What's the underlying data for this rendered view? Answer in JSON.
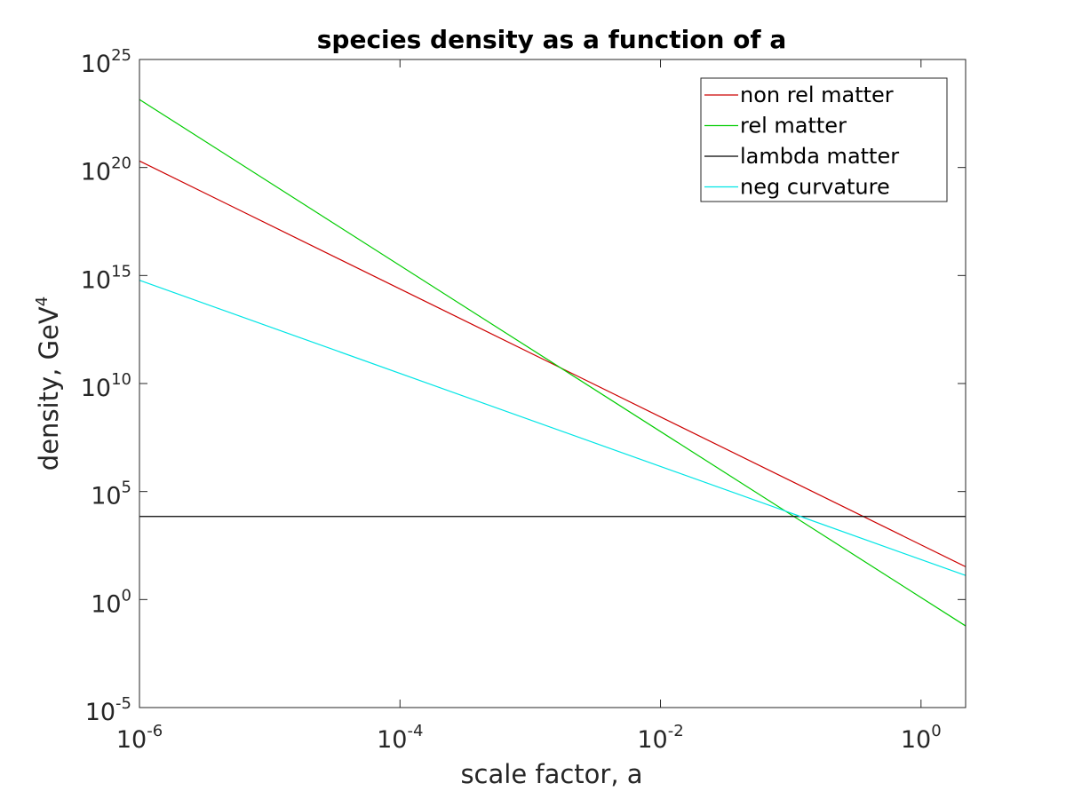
{
  "chart_data": {
    "type": "line",
    "title": "species density as a function of a",
    "xlabel": "scale factor, a",
    "ylabel": {
      "text": "density, GeV",
      "sup": "4"
    },
    "xscale": "log",
    "yscale": "log",
    "xlim": [
      1e-06,
      2.2
    ],
    "ylim": [
      1e-05,
      1e+25
    ],
    "xticks": [
      {
        "value": 1e-06,
        "base": "10",
        "exp": "-6"
      },
      {
        "value": 0.0001,
        "base": "10",
        "exp": "-4"
      },
      {
        "value": 0.01,
        "base": "10",
        "exp": "-2"
      },
      {
        "value": 1,
        "base": "10",
        "exp": "0"
      }
    ],
    "yticks": [
      {
        "value": 1e-05,
        "base": "10",
        "exp": "-5"
      },
      {
        "value": 1,
        "base": "10",
        "exp": "0"
      },
      {
        "value": 100000.0,
        "base": "10",
        "exp": "5"
      },
      {
        "value": 10000000000.0,
        "base": "10",
        "exp": "10"
      },
      {
        "value": 1000000000000000.0,
        "base": "10",
        "exp": "15"
      },
      {
        "value": 1e+20,
        "base": "10",
        "exp": "20"
      },
      {
        "value": 1e+25,
        "base": "10",
        "exp": "25"
      }
    ],
    "grid": false,
    "legend_position": "top-right",
    "series": [
      {
        "name": "non rel matter",
        "color": "#cc0000",
        "x": [
          1e-06,
          2.2
        ],
        "y": [
          2e+20,
          33
        ]
      },
      {
        "name": "rel matter",
        "color": "#00cc00",
        "x": [
          1e-06,
          2.2
        ],
        "y": [
          1.4e+23,
          0.06
        ]
      },
      {
        "name": "lambda matter",
        "color": "#000000",
        "x": [
          1e-06,
          2.2
        ],
        "y": [
          7000.0,
          7000.0
        ]
      },
      {
        "name": "neg curvature",
        "color": "#00e5e5",
        "x": [
          1e-06,
          2.2
        ],
        "y": [
          600000000000000.0,
          13
        ]
      }
    ]
  }
}
